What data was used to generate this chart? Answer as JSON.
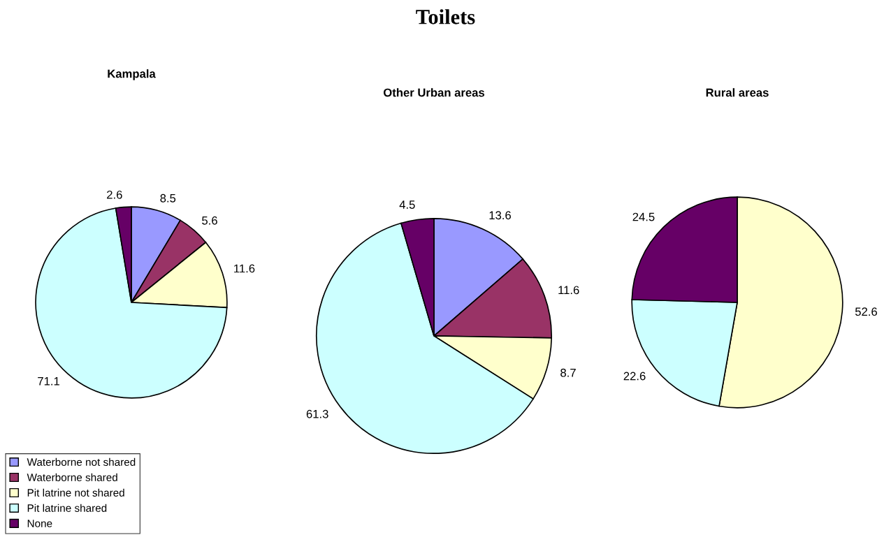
{
  "chart_data": [
    {
      "type": "pie",
      "title": "Kampala",
      "annotations": [
        "Toilets"
      ],
      "legend": "bottom left",
      "data_labels": true,
      "categories": [
        "Waterborne not shared",
        "Waterborne shared",
        "Pit latrine not shared",
        "Pit latrine shared",
        "None"
      ],
      "values": [
        8.5,
        5.6,
        11.6,
        71.1,
        2.6
      ],
      "colors": [
        "#9999ff",
        "#993366",
        "#ffffcc",
        "#ccffff",
        "#660066"
      ]
    },
    {
      "type": "pie",
      "title": "Other Urban areas",
      "data_labels": true,
      "categories": [
        null,
        null,
        null,
        null,
        null
      ],
      "values": [
        13.6,
        11.6,
        8.7,
        61.3,
        4.5
      ],
      "colors": [
        "#9999ff",
        "#993366",
        "#ffffcc",
        "#ccffff",
        "#660066"
      ]
    },
    {
      "type": "pie",
      "title": "Rural areas",
      "data_labels": true,
      "categories": [
        null,
        null,
        null
      ],
      "values": [
        52.6,
        22.6,
        24.5
      ],
      "colors": [
        "#ffffcc",
        "#ccffff",
        "#660066"
      ]
    }
  ]
}
